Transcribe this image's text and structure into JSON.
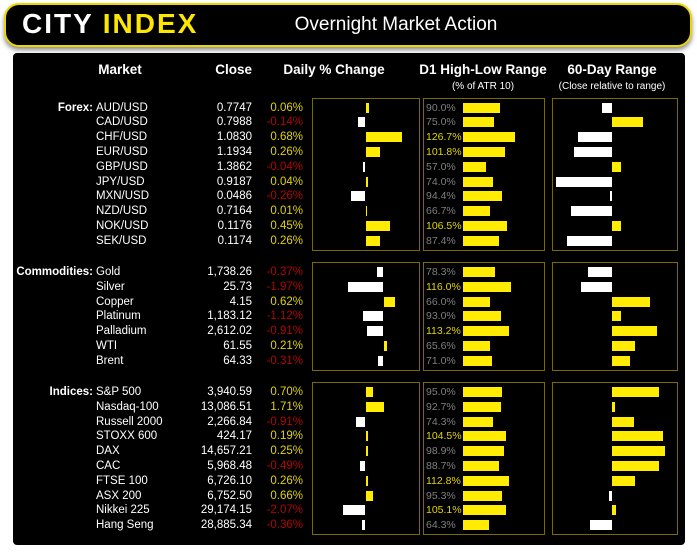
{
  "header": {
    "logo_city": "CITY",
    "logo_index": "INDEX",
    "title": "Overnight Market Action"
  },
  "columns": {
    "market": "Market",
    "close": "Close",
    "daily": "Daily % Change",
    "d1": "D1 High-Low Range",
    "d1_sub": "(% of ATR 10)",
    "range60": "60-Day Range",
    "range60_sub": "(Close relative to range)"
  },
  "colors": {
    "background": "#000000",
    "page_margin": "#ffffff",
    "header_border": "#ecd600",
    "logo_yellow": "#ffe600",
    "bar_yellow": "#ffec00",
    "bar_white": "#ffffff",
    "positive_text": "#e2d400",
    "negative_text": "#b00606",
    "muted_label": "#7f7f7f",
    "chart_box_border": "#7a6a00"
  },
  "chart_data": {
    "type": "table",
    "title": "Overnight Market Action",
    "d1_axis": {
      "min": 0,
      "max": 200,
      "unit": "% of ATR 10"
    },
    "range60_axis": {
      "min": -1,
      "max": 1,
      "note": "close relative to 60-day range midpoint; negative = white bar left, positive = yellow bar right"
    },
    "sections": [
      {
        "label": "Forex:",
        "daily_axis": {
          "min": -1,
          "max": 1
        },
        "rows": [
          {
            "market": "AUD/USD",
            "close": "0.7747",
            "daily_pct": 0.06,
            "d1_atr_pct": 90.0,
            "range60_rel": -0.16
          },
          {
            "market": "CAD/USD",
            "close": "0.7988",
            "daily_pct": -0.14,
            "d1_atr_pct": 75.0,
            "range60_rel": 0.5
          },
          {
            "market": "CHF/USD",
            "close": "1.0830",
            "daily_pct": 0.68,
            "d1_atr_pct": 126.7,
            "range60_rel": -0.55
          },
          {
            "market": "EUR/USD",
            "close": "1.1934",
            "daily_pct": 0.26,
            "d1_atr_pct": 101.8,
            "range60_rel": -0.61
          },
          {
            "market": "GBP/USD",
            "close": "1.3862",
            "daily_pct": -0.04,
            "d1_atr_pct": 57.0,
            "range60_rel": 0.15
          },
          {
            "market": "JPY/USD",
            "close": "0.9187",
            "daily_pct": 0.04,
            "d1_atr_pct": 74.0,
            "range60_rel": -0.91
          },
          {
            "market": "MXN/USD",
            "close": "0.0486",
            "daily_pct": -0.26,
            "d1_atr_pct": 94.4,
            "range60_rel": -0.03
          },
          {
            "market": "NZD/USD",
            "close": "0.7164",
            "daily_pct": 0.01,
            "d1_atr_pct": 66.7,
            "range60_rel": -0.66
          },
          {
            "market": "NOK/USD",
            "close": "0.1176",
            "daily_pct": 0.45,
            "d1_atr_pct": 106.5,
            "range60_rel": 0.15
          },
          {
            "market": "SEK/USD",
            "close": "0.1174",
            "daily_pct": 0.26,
            "d1_atr_pct": 87.4,
            "range60_rel": -0.73
          }
        ]
      },
      {
        "label": "Commodities:",
        "daily_axis": {
          "min": -4,
          "max": 2
        },
        "rows": [
          {
            "market": "Gold",
            "close": "1,738.26",
            "daily_pct": -0.37,
            "d1_atr_pct": 78.3,
            "range60_rel": -0.39
          },
          {
            "market": "Silver",
            "close": "25.73",
            "daily_pct": -1.97,
            "d1_atr_pct": 116.0,
            "range60_rel": -0.5
          },
          {
            "market": "Copper",
            "close": "4.15",
            "daily_pct": 0.62,
            "d1_atr_pct": 66.0,
            "range60_rel": 0.61
          },
          {
            "market": "Platinum",
            "close": "1,183.12",
            "daily_pct": -1.12,
            "d1_atr_pct": 93.0,
            "range60_rel": 0.15
          },
          {
            "market": "Palladium",
            "close": "2,612.02",
            "daily_pct": -0.91,
            "d1_atr_pct": 113.2,
            "range60_rel": 0.73
          },
          {
            "market": "WTI",
            "close": "61.55",
            "daily_pct": 0.21,
            "d1_atr_pct": 65.6,
            "range60_rel": 0.37
          },
          {
            "market": "Brent",
            "close": "64.33",
            "daily_pct": -0.31,
            "d1_atr_pct": 71.0,
            "range60_rel": 0.29
          }
        ]
      },
      {
        "label": "Indices:",
        "daily_axis": {
          "min": -5,
          "max": 5
        },
        "rows": [
          {
            "market": "S&P 500",
            "close": "3,940.59",
            "daily_pct": 0.7,
            "d1_atr_pct": 95.0,
            "range60_rel": 0.75
          },
          {
            "market": "Nasdaq-100",
            "close": "13,086.51",
            "daily_pct": 1.71,
            "d1_atr_pct": 92.7,
            "range60_rel": 0.05
          },
          {
            "market": "Russell 2000",
            "close": "2,266.84",
            "daily_pct": -0.91,
            "d1_atr_pct": 74.3,
            "range60_rel": 0.35
          },
          {
            "market": "STOXX 600",
            "close": "424.17",
            "daily_pct": 0.19,
            "d1_atr_pct": 104.5,
            "range60_rel": 0.83
          },
          {
            "market": "DAX",
            "close": "14,657.21",
            "daily_pct": 0.25,
            "d1_atr_pct": 98.9,
            "range60_rel": 0.85
          },
          {
            "market": "CAC",
            "close": "5,968.48",
            "daily_pct": -0.49,
            "d1_atr_pct": 88.7,
            "range60_rel": 0.75
          },
          {
            "market": "FTSE 100",
            "close": "6,726.10",
            "daily_pct": 0.26,
            "d1_atr_pct": 112.8,
            "range60_rel": 0.37
          },
          {
            "market": "ASX 200",
            "close": "6,752.50",
            "daily_pct": 0.66,
            "d1_atr_pct": 95.3,
            "range60_rel": -0.05
          },
          {
            "market": "Nikkei 225",
            "close": "29,174.15",
            "daily_pct": -2.07,
            "d1_atr_pct": 105.1,
            "range60_rel": 0.06
          },
          {
            "market": "Hang Seng",
            "close": "28,885.34",
            "daily_pct": -0.36,
            "d1_atr_pct": 64.3,
            "range60_rel": -0.36
          }
        ]
      }
    ]
  }
}
